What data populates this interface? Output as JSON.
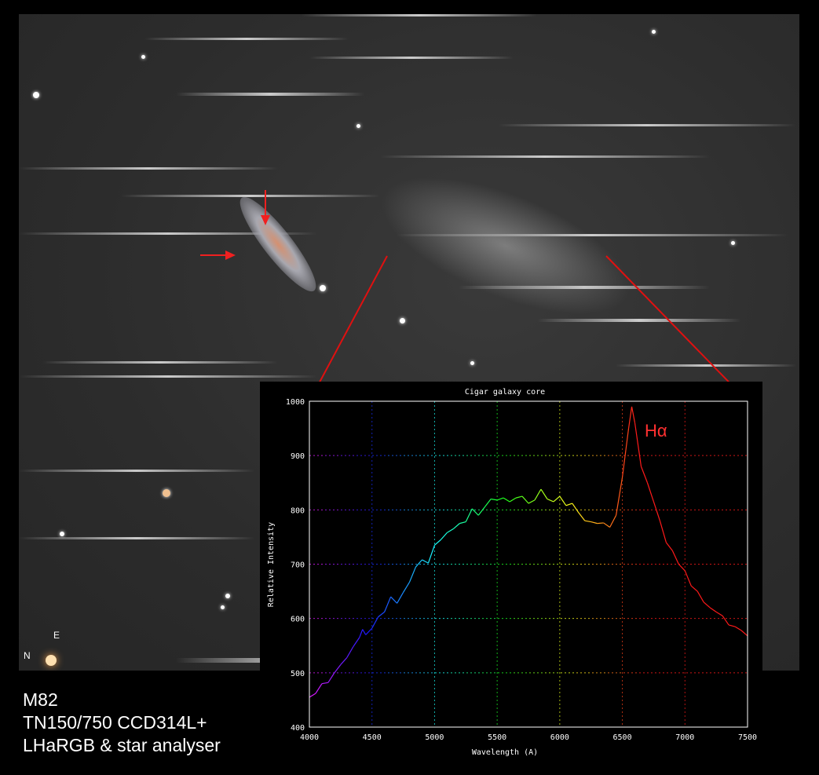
{
  "photo": {
    "compass_north": "N",
    "compass_east": "E"
  },
  "caption": {
    "line1": "M82",
    "line2": "TN150/750 CCD314L+",
    "line3": "LHaRGB & star analyser"
  },
  "chart_data": {
    "type": "line",
    "title": "Cigar galaxy core",
    "xlabel": "Wavelength (A)",
    "ylabel": "Relative Intensity",
    "xlim": [
      4000,
      7500
    ],
    "ylim": [
      400,
      1000
    ],
    "xticks": [
      4000,
      4500,
      5000,
      5500,
      6000,
      6500,
      7000,
      7500
    ],
    "yticks": [
      400,
      500,
      600,
      700,
      800,
      900,
      1000
    ],
    "grid": true,
    "line_color": "spectral (violet to red by wavelength)",
    "annotation": {
      "text": "Hα",
      "x": 6700,
      "y": 955,
      "color": "#ff3030"
    },
    "x": [
      4000,
      4050,
      4100,
      4150,
      4200,
      4250,
      4300,
      4350,
      4400,
      4425,
      4450,
      4500,
      4550,
      4600,
      4650,
      4700,
      4750,
      4800,
      4850,
      4900,
      4950,
      5000,
      5050,
      5100,
      5150,
      5200,
      5250,
      5300,
      5350,
      5400,
      5450,
      5500,
      5550,
      5600,
      5650,
      5700,
      5750,
      5800,
      5850,
      5900,
      5950,
      6000,
      6050,
      6100,
      6150,
      6200,
      6250,
      6300,
      6350,
      6400,
      6450,
      6500,
      6550,
      6575,
      6600,
      6650,
      6700,
      6750,
      6800,
      6850,
      6900,
      6950,
      7000,
      7050,
      7100,
      7150,
      7200,
      7250,
      7300,
      7350,
      7400,
      7450,
      7500
    ],
    "y": [
      455,
      462,
      480,
      482,
      500,
      515,
      528,
      548,
      565,
      580,
      570,
      582,
      603,
      612,
      640,
      628,
      648,
      667,
      695,
      708,
      702,
      735,
      745,
      758,
      765,
      775,
      778,
      802,
      790,
      805,
      820,
      818,
      822,
      815,
      822,
      825,
      812,
      818,
      838,
      820,
      815,
      825,
      808,
      812,
      795,
      780,
      778,
      775,
      776,
      768,
      790,
      860,
      950,
      990,
      960,
      880,
      850,
      815,
      780,
      740,
      725,
      700,
      688,
      660,
      650,
      630,
      620,
      612,
      605,
      588,
      585,
      578,
      568
    ]
  }
}
